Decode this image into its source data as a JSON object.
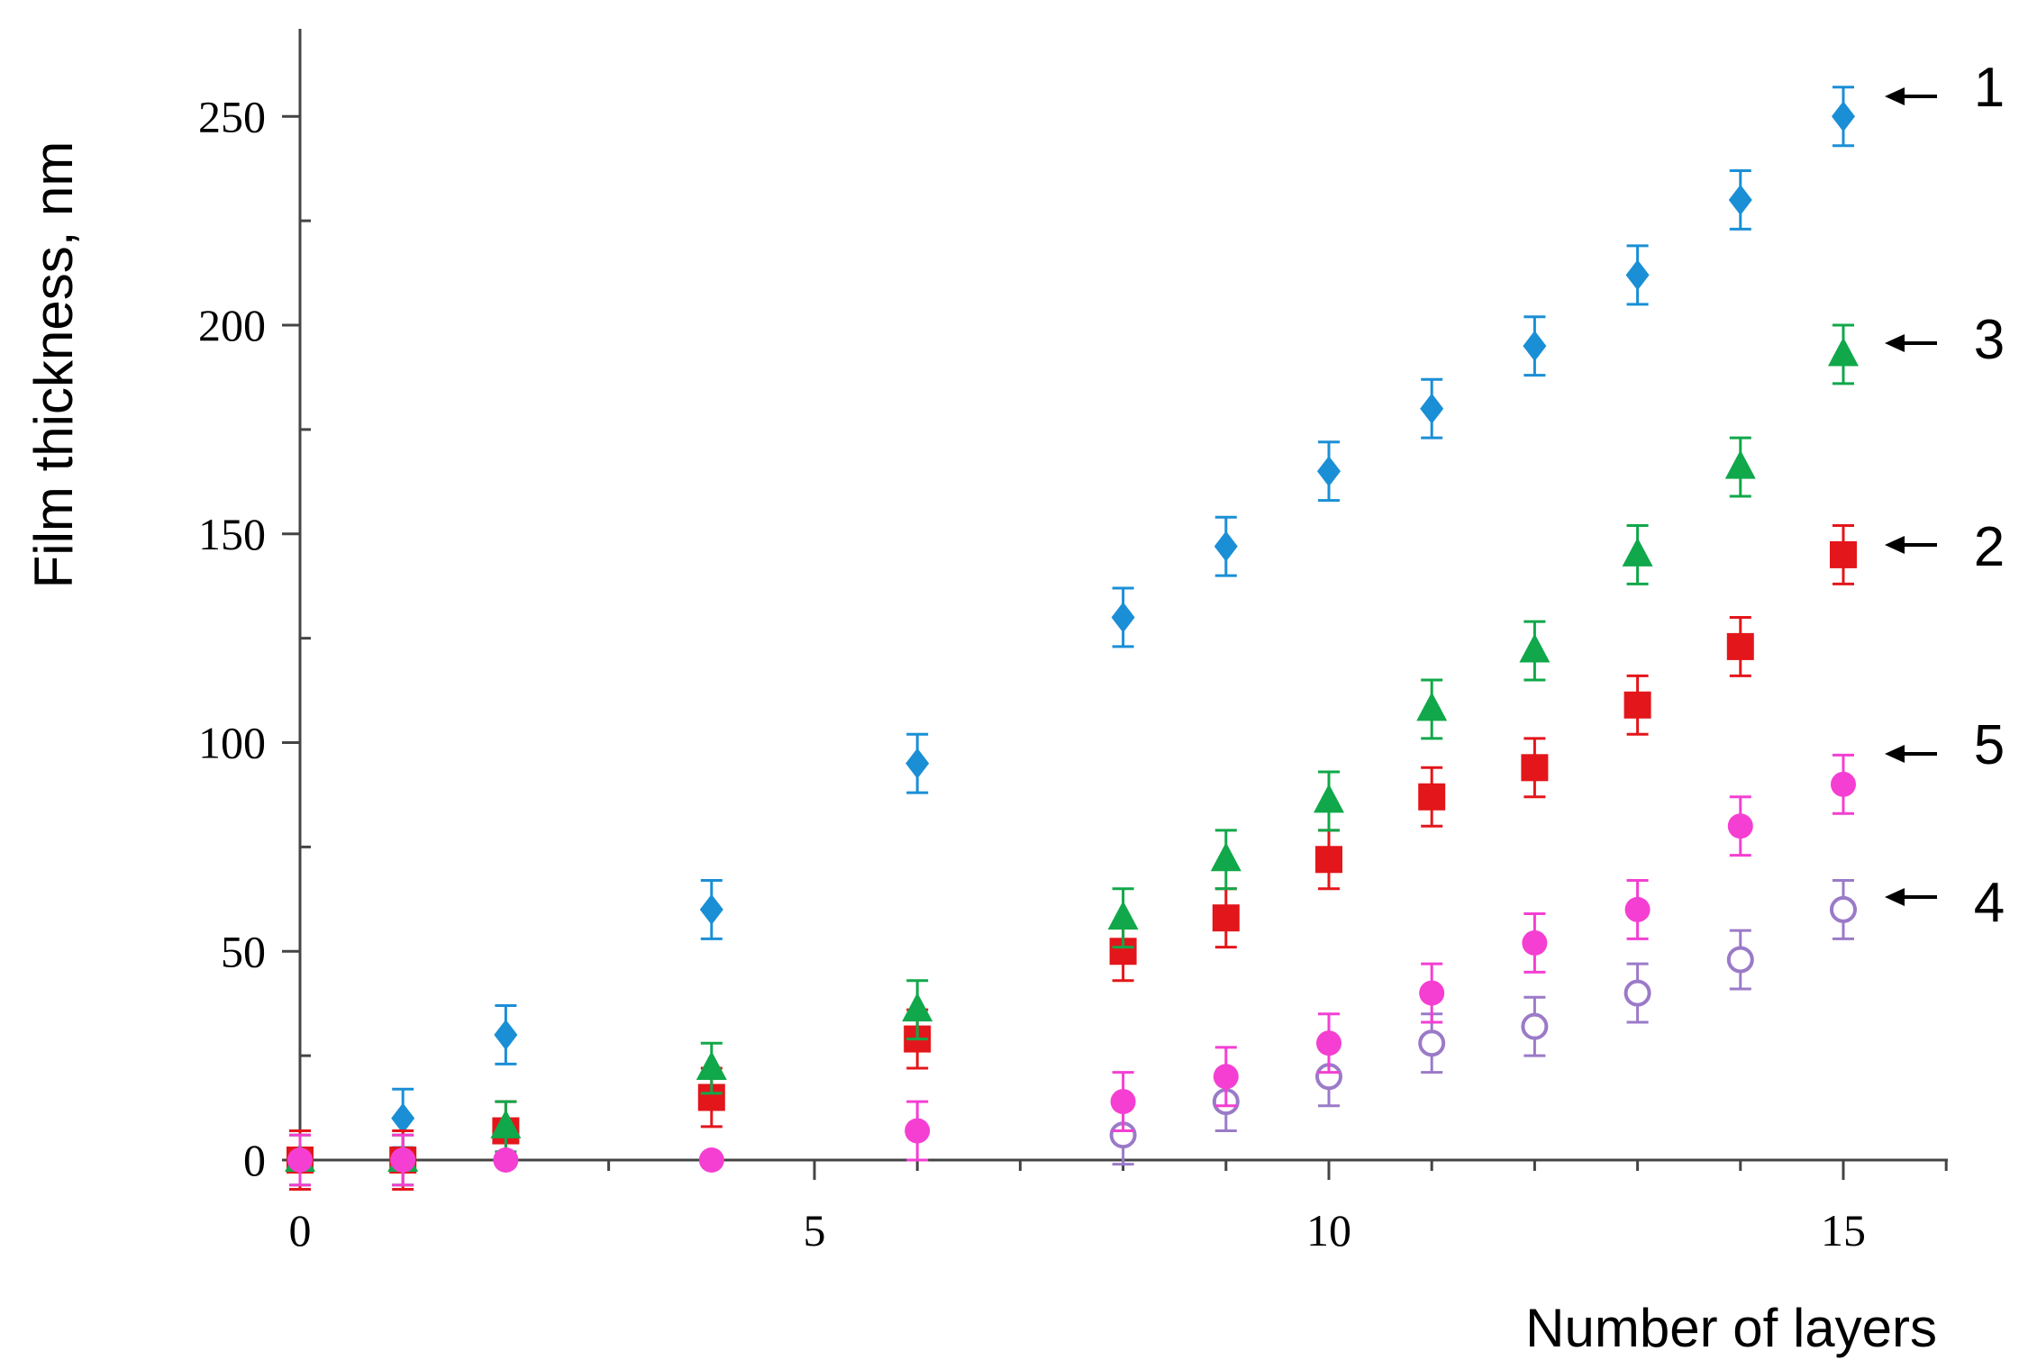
{
  "chart_data": {
    "type": "scatter",
    "xlabel": "Number of layers",
    "ylabel": "Film thickness, nm",
    "xlim": [
      0,
      16
    ],
    "ylim": [
      0,
      270
    ],
    "x_ticks": [
      0,
      5,
      10,
      15
    ],
    "y_ticks": [
      0,
      50,
      100,
      150,
      200,
      250
    ],
    "grid": false,
    "legend": "arrow labels at right end of each series",
    "series": [
      {
        "name": "1",
        "marker": "diamond",
        "color": "#1a8fd6",
        "filled": true,
        "x": [
          0,
          1,
          2,
          4,
          6,
          8,
          9,
          10,
          11,
          12,
          13,
          14,
          15
        ],
        "y": [
          0,
          10,
          30,
          60,
          95,
          130,
          147,
          165,
          180,
          195,
          212,
          230,
          250
        ],
        "err": [
          7,
          7,
          7,
          7,
          7,
          7,
          7,
          7,
          7,
          7,
          7,
          7,
          7
        ]
      },
      {
        "name": "2",
        "marker": "square",
        "color": "#e3161b",
        "filled": true,
        "x": [
          0,
          1,
          2,
          4,
          6,
          8,
          9,
          10,
          11,
          12,
          13,
          14,
          15
        ],
        "y": [
          0,
          0,
          7,
          15,
          29,
          50,
          58,
          72,
          87,
          94,
          109,
          123,
          145
        ],
        "err": [
          7,
          7,
          7,
          7,
          7,
          7,
          7,
          7,
          7,
          7,
          7,
          7,
          7
        ]
      },
      {
        "name": "3",
        "marker": "triangle",
        "color": "#10a84a",
        "filled": true,
        "x": [
          0,
          1,
          2,
          4,
          6,
          8,
          9,
          10,
          11,
          12,
          13,
          14,
          15
        ],
        "y": [
          0,
          0,
          8,
          22,
          36,
          58,
          72,
          86,
          108,
          122,
          145,
          166,
          193
        ],
        "err": [
          6,
          6,
          6,
          6,
          7,
          7,
          7,
          7,
          7,
          7,
          7,
          7,
          7
        ]
      },
      {
        "name": "4",
        "marker": "circle",
        "color": "#9b7ac8",
        "filled": false,
        "x": [
          8,
          9,
          10,
          11,
          12,
          13,
          14,
          15
        ],
        "y": [
          6,
          14,
          20,
          28,
          32,
          40,
          48,
          60
        ],
        "err": [
          7,
          7,
          7,
          7,
          7,
          7,
          7,
          7
        ]
      },
      {
        "name": "5",
        "marker": "circle",
        "color": "#f43fd2",
        "filled": true,
        "x": [
          0,
          1,
          2,
          4,
          6,
          8,
          9,
          10,
          11,
          12,
          13,
          14,
          15
        ],
        "y": [
          0,
          0,
          0,
          0,
          7,
          14,
          20,
          28,
          40,
          52,
          60,
          80,
          90
        ],
        "err": [
          6,
          6,
          0,
          0,
          7,
          7,
          7,
          7,
          7,
          7,
          7,
          7,
          7
        ]
      }
    ]
  }
}
